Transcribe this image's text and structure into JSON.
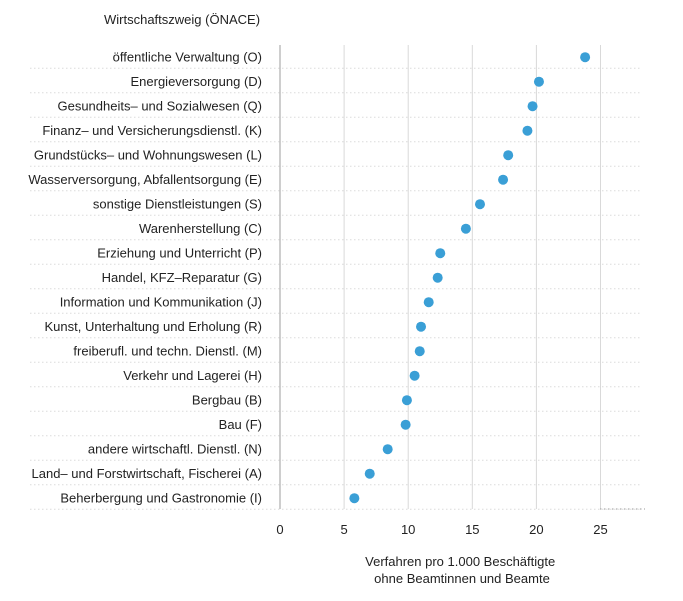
{
  "chart_data": {
    "type": "scatter",
    "orientation": "horizontal-dot",
    "category_axis_title": "Wirtschaftszweig (ÖNACE)",
    "xlabel_lines": [
      "Verfahren pro 1.000 Beschäftigte",
      "ohne Beamtinnen und Beamte"
    ],
    "xlim": [
      0,
      25
    ],
    "xticks": [
      0,
      5,
      10,
      15,
      20,
      25
    ],
    "grid": "vertical",
    "point_color": "#3a9fd6",
    "categories": [
      "öffentliche Verwaltung (O)",
      "Energieversorgung (D)",
      "Gesundheits– und Sozialwesen (Q)",
      "Finanz– und Versicherungsdienstl. (K)",
      "Grundstücks– und Wohnungswesen (L)",
      "Wasserversorgung, Abfallentsorgung (E)",
      "sonstige Dienstleistungen (S)",
      "Warenherstellung (C)",
      "Erziehung und Unterricht (P)",
      "Handel, KFZ–Reparatur (G)",
      "Information und Kommunikation (J)",
      "Kunst, Unterhaltung und Erholung (R)",
      "freiberufl. und techn. Dienstl. (M)",
      "Verkehr und Lagerei (H)",
      "Bergbau (B)",
      "Bau (F)",
      "andere wirtschaftl. Dienstl. (N)",
      "Land– und Forstwirtschaft, Fischerei (A)",
      "Beherbergung und Gastronomie (I)"
    ],
    "values": [
      23.8,
      20.2,
      19.7,
      19.3,
      17.8,
      17.4,
      15.6,
      14.5,
      12.5,
      12.3,
      11.6,
      11.0,
      10.9,
      10.5,
      9.9,
      9.8,
      8.4,
      7.0,
      5.8
    ]
  }
}
